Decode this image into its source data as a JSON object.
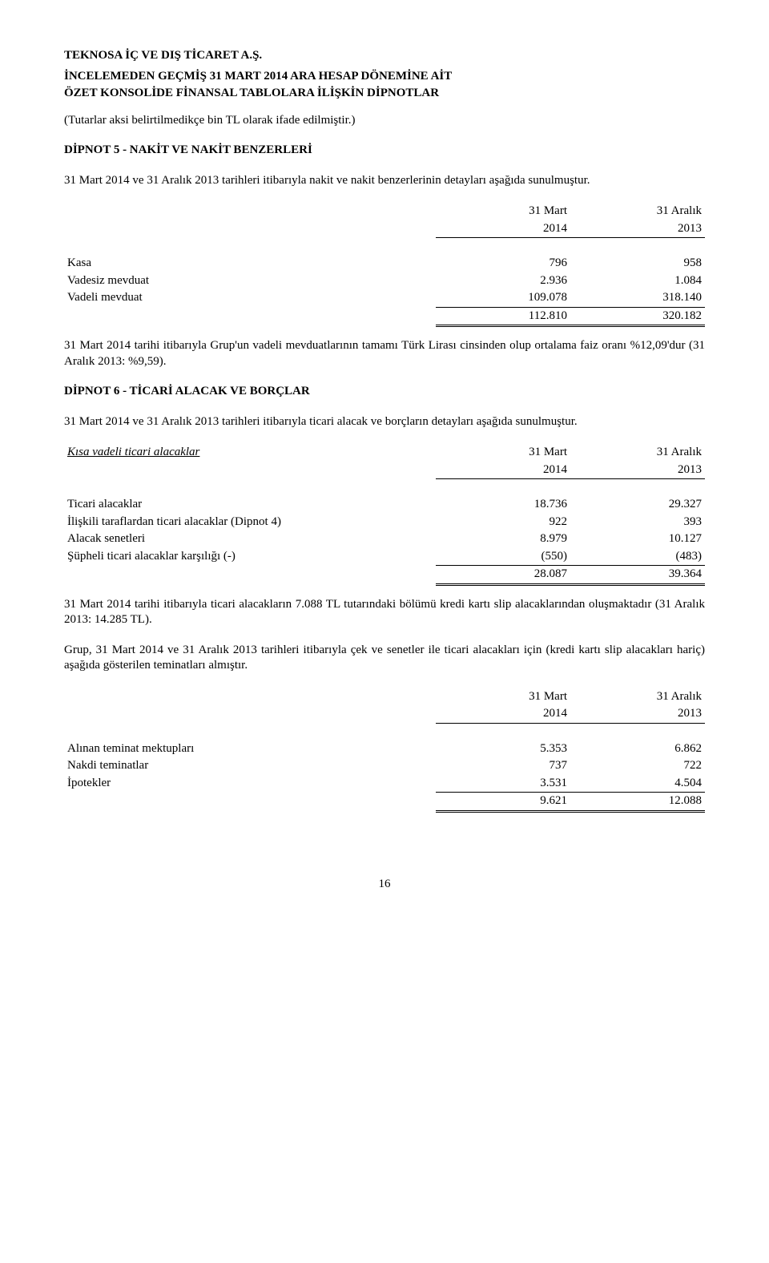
{
  "header": {
    "company": "TEKNOSA İÇ VE DIŞ TİCARET A.Ş.",
    "line1": "İNCELEMEDEN GEÇMİŞ 31 MART 2014 ARA HESAP DÖNEMİNE AİT",
    "line2": "ÖZET KONSOLİDE FİNANSAL TABLOLARA İLİŞKİN DİPNOTLAR",
    "note": "(Tutarlar aksi belirtilmedikçe bin TL olarak ifade edilmiştir.)"
  },
  "note5": {
    "title": "DİPNOT 5 - NAKİT VE NAKİT BENZERLERİ",
    "intro": "31 Mart 2014 ve 31 Aralık 2013 tarihleri itibarıyla nakit ve nakit benzerlerinin detayları aşağıda sunulmuştur.",
    "col1_a": "31 Mart",
    "col1_b": "2014",
    "col2_a": "31 Aralık",
    "col2_b": "2013",
    "rows": {
      "r1": {
        "label": "Kasa",
        "v1": "796",
        "v2": "958"
      },
      "r2": {
        "label": "Vadesiz mevduat",
        "v1": "2.936",
        "v2": "1.084"
      },
      "r3": {
        "label": "Vadeli mevduat",
        "v1": "109.078",
        "v2": "318.140"
      },
      "total": {
        "v1": "112.810",
        "v2": "320.182"
      }
    },
    "footnote": "31 Mart 2014 tarihi itibarıyla Grup'un vadeli mevduatlarının tamamı Türk Lirası cinsinden olup ortalama faiz oranı %12,09'dur (31 Aralık 2013: %9,59)."
  },
  "note6": {
    "title": "DİPNOT 6 - TİCARİ ALACAK VE BORÇLAR",
    "intro": "31 Mart 2014 ve 31 Aralık 2013 tarihleri itibarıyla ticari alacak ve borçların detayları aşağıda sunulmuştur.",
    "subhead": "Kısa vadeli ticari alacaklar",
    "col1_a": "31 Mart",
    "col1_b": "2014",
    "col2_a": "31 Aralık",
    "col2_b": "2013",
    "rows": {
      "r1": {
        "label": "Ticari alacaklar",
        "v1": "18.736",
        "v2": "29.327"
      },
      "r2": {
        "label": "İlişkili taraflardan ticari alacaklar (Dipnot 4)",
        "v1": "922",
        "v2": "393"
      },
      "r3": {
        "label": "Alacak senetleri",
        "v1": "8.979",
        "v2": "10.127"
      },
      "r4": {
        "label": "Şüpheli ticari alacaklar karşılığı (-)",
        "v1": "(550)",
        "v2": "(483)"
      },
      "total": {
        "v1": "28.087",
        "v2": "39.364"
      }
    },
    "para1": "31 Mart 2014 tarihi itibarıyla ticari alacakların 7.088 TL tutarındaki bölümü kredi kartı slip alacaklarından oluşmaktadır (31 Aralık 2013: 14.285 TL).",
    "para2": "Grup, 31 Mart 2014 ve 31 Aralık 2013 tarihleri itibarıyla çek ve senetler ile ticari alacakları için (kredi kartı slip alacakları hariç) aşağıda gösterilen teminatları almıştır.",
    "t2": {
      "col1_a": "31 Mart",
      "col1_b": "2014",
      "col2_a": "31 Aralık",
      "col2_b": "2013",
      "rows": {
        "r1": {
          "label": "Alınan teminat mektupları",
          "v1": "5.353",
          "v2": "6.862"
        },
        "r2": {
          "label": "Nakdi teminatlar",
          "v1": "737",
          "v2": "722"
        },
        "r3": {
          "label": "İpotekler",
          "v1": "3.531",
          "v2": "4.504"
        },
        "total": {
          "v1": "9.621",
          "v2": "12.088"
        }
      }
    }
  },
  "page_number": "16"
}
